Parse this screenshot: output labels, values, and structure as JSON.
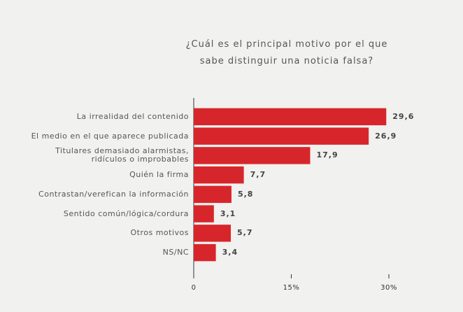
{
  "chart_data": {
    "type": "bar",
    "orientation": "horizontal",
    "title": "¿Cuál es el principal motivo por el que\nsabe distinguir una noticia falsa?",
    "categories": [
      "La irrealidad del contenido",
      "El medio en el que aparece publicada",
      "Titulares demasiado alarmistas,\nridículos o improbables",
      "Quién la firma",
      "Contrastan/verefican la información",
      "Sentido común/lógica/cordura",
      "Otros motivos",
      "NS/NC"
    ],
    "values": [
      29.6,
      26.9,
      17.9,
      7.7,
      5.8,
      3.1,
      5.7,
      3.4
    ],
    "value_labels": [
      "29,6",
      "26,9",
      "17,9",
      "7,7",
      "5,8",
      "3,1",
      "5,7",
      "3,4"
    ],
    "color": "#d7262b",
    "xlim": [
      0,
      30
    ],
    "xticks": [
      0,
      {
        "value": 15,
        "label": "15%"
      },
      {
        "value": 30,
        "label": "30%"
      }
    ]
  }
}
